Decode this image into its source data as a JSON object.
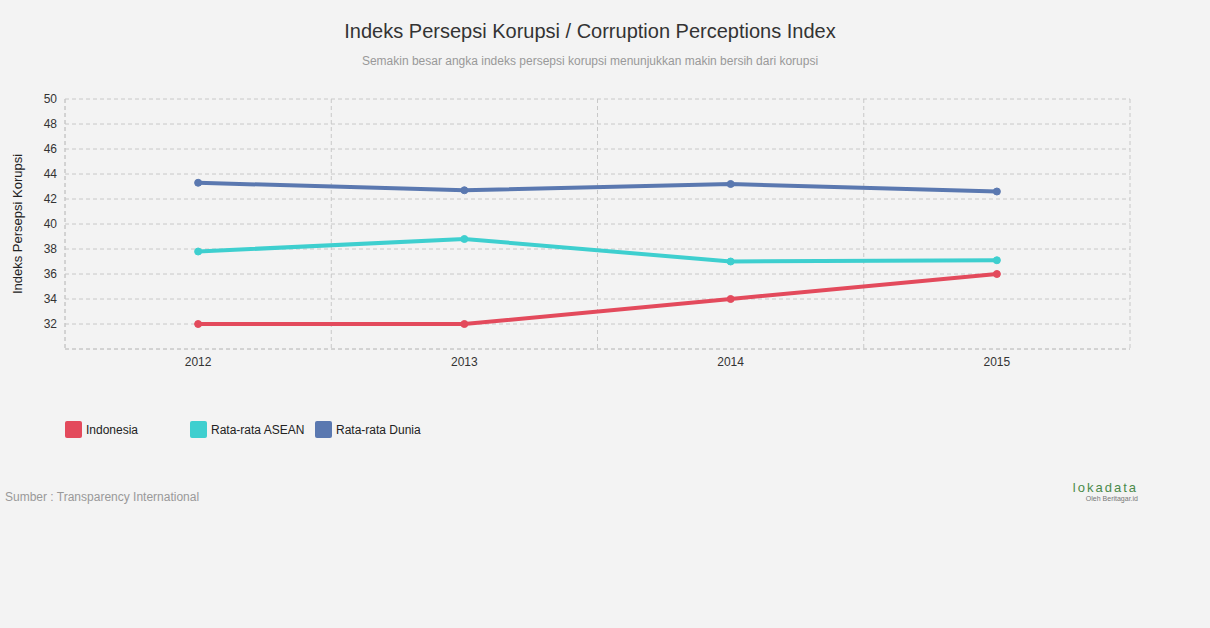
{
  "chart_data": {
    "type": "line",
    "title": "Indeks Persepsi Korupsi / Corruption Perceptions Index",
    "subtitle": "Semakin besar angka indeks persepsi korupsi menunjukkan makin bersih dari korupsi",
    "y_label": "Indeks Persepsi Korupsi",
    "categories": [
      "2012",
      "2013",
      "2014",
      "2015"
    ],
    "series": [
      {
        "name": "Indonesia",
        "color": "#e34a5c",
        "values": [
          32,
          32,
          34,
          36
        ]
      },
      {
        "name": "Rata-rata ASEAN",
        "color": "#3ecfcf",
        "values": [
          37.8,
          38.8,
          37.0,
          37.1
        ]
      },
      {
        "name": "Rata-rata Dunia",
        "color": "#5a78b0",
        "values": [
          43.3,
          42.7,
          43.2,
          42.6
        ]
      }
    ],
    "ylim": [
      30,
      50
    ],
    "yticks": [
      32,
      34,
      36,
      38,
      40,
      42,
      44,
      46,
      48,
      50
    ],
    "grid": true,
    "legend": "bottom-left",
    "marker": "circle",
    "source": "Sumber : Transparency International",
    "credit": "lokadata",
    "credit_sub": "Oleh Beritagar.id"
  }
}
